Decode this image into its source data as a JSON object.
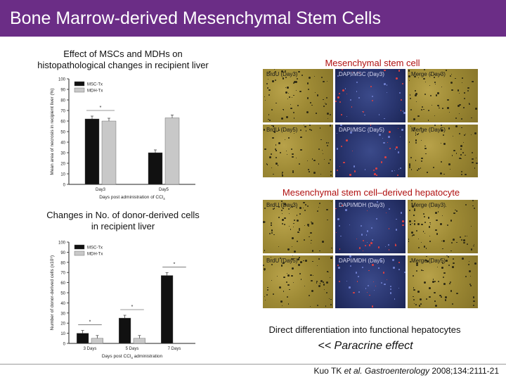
{
  "slide": {
    "title": "Bone Marrow-derived Mesenchymal Stem Cells",
    "title_bg": "#6b2d86",
    "left_top_caption_1": "Effect of MSCs and MDHs on",
    "left_top_caption_2": "histopathological changes in recipient liver",
    "left_bottom_caption_1": "Changes in No. of donor-derived cells",
    "left_bottom_caption_2": "in recipient liver",
    "right_top_caption": "Mesenchymal stem cell",
    "right_mid_caption": "Mesenchymal stem cell–derived hepatocyte",
    "right_bottom_caption": "Direct differentiation into functional hepatocytes",
    "paracrine": "<< Paracrine effect",
    "ref_1": "Kuo TK ",
    "ref_2": "et al.",
    "ref_3": " Gastroenterology",
    "ref_4": " 2008;134:2111-21"
  },
  "chart_data": [
    {
      "type": "bar",
      "ylabel": "Mean area of necrosis in recipient liver (%)",
      "xlabel": "Days post administration of CCl",
      "xlabel_sub": "4",
      "categories": [
        "Day3",
        "Day5"
      ],
      "ylim": [
        0,
        100
      ],
      "yticks": [
        0,
        10,
        20,
        30,
        40,
        50,
        60,
        70,
        80,
        90,
        100
      ],
      "series": [
        {
          "name": "MSC-Tx",
          "color": "#111111",
          "values": [
            62,
            30
          ]
        },
        {
          "name": "MDH-Tx",
          "color": "#c8c8c8",
          "values": [
            60,
            63
          ]
        }
      ],
      "annotations": [
        "*"
      ]
    },
    {
      "type": "bar",
      "ylabel": "Number of donor-derived cells (x10⁵)",
      "xlabel": "Days post CCl",
      "xlabel_sub": "4",
      "xlabel_tail": " administration",
      "categories": [
        "3 Days",
        "5 Days",
        "7 Days"
      ],
      "ylim": [
        0,
        100
      ],
      "yticks": [
        0,
        10,
        20,
        30,
        40,
        50,
        60,
        70,
        80,
        90,
        100
      ],
      "series": [
        {
          "name": "MSC-Tx",
          "color": "#111111",
          "values": [
            10,
            25,
            67
          ]
        },
        {
          "name": "MDH-Tx",
          "color": "#c8c8c8",
          "values": [
            5,
            5,
            0
          ]
        }
      ],
      "annotations": [
        "*",
        "*",
        "*"
      ]
    }
  ],
  "micrographs": {
    "top": [
      "BrdU (Day3)",
      "DAPI/MSC (Day3)",
      "Merge (Day3)",
      "BrdU (Day5)",
      "DAPI/MSC (Day5)",
      "Merge (Day5)"
    ],
    "bottom": [
      "BrdU (Day3)",
      "DAPI/MDH (Day3)",
      "Merge (Day3)",
      "BrdU (Day5)",
      "DAPI/MDH (Day5)",
      "Merge (Day5)"
    ]
  }
}
